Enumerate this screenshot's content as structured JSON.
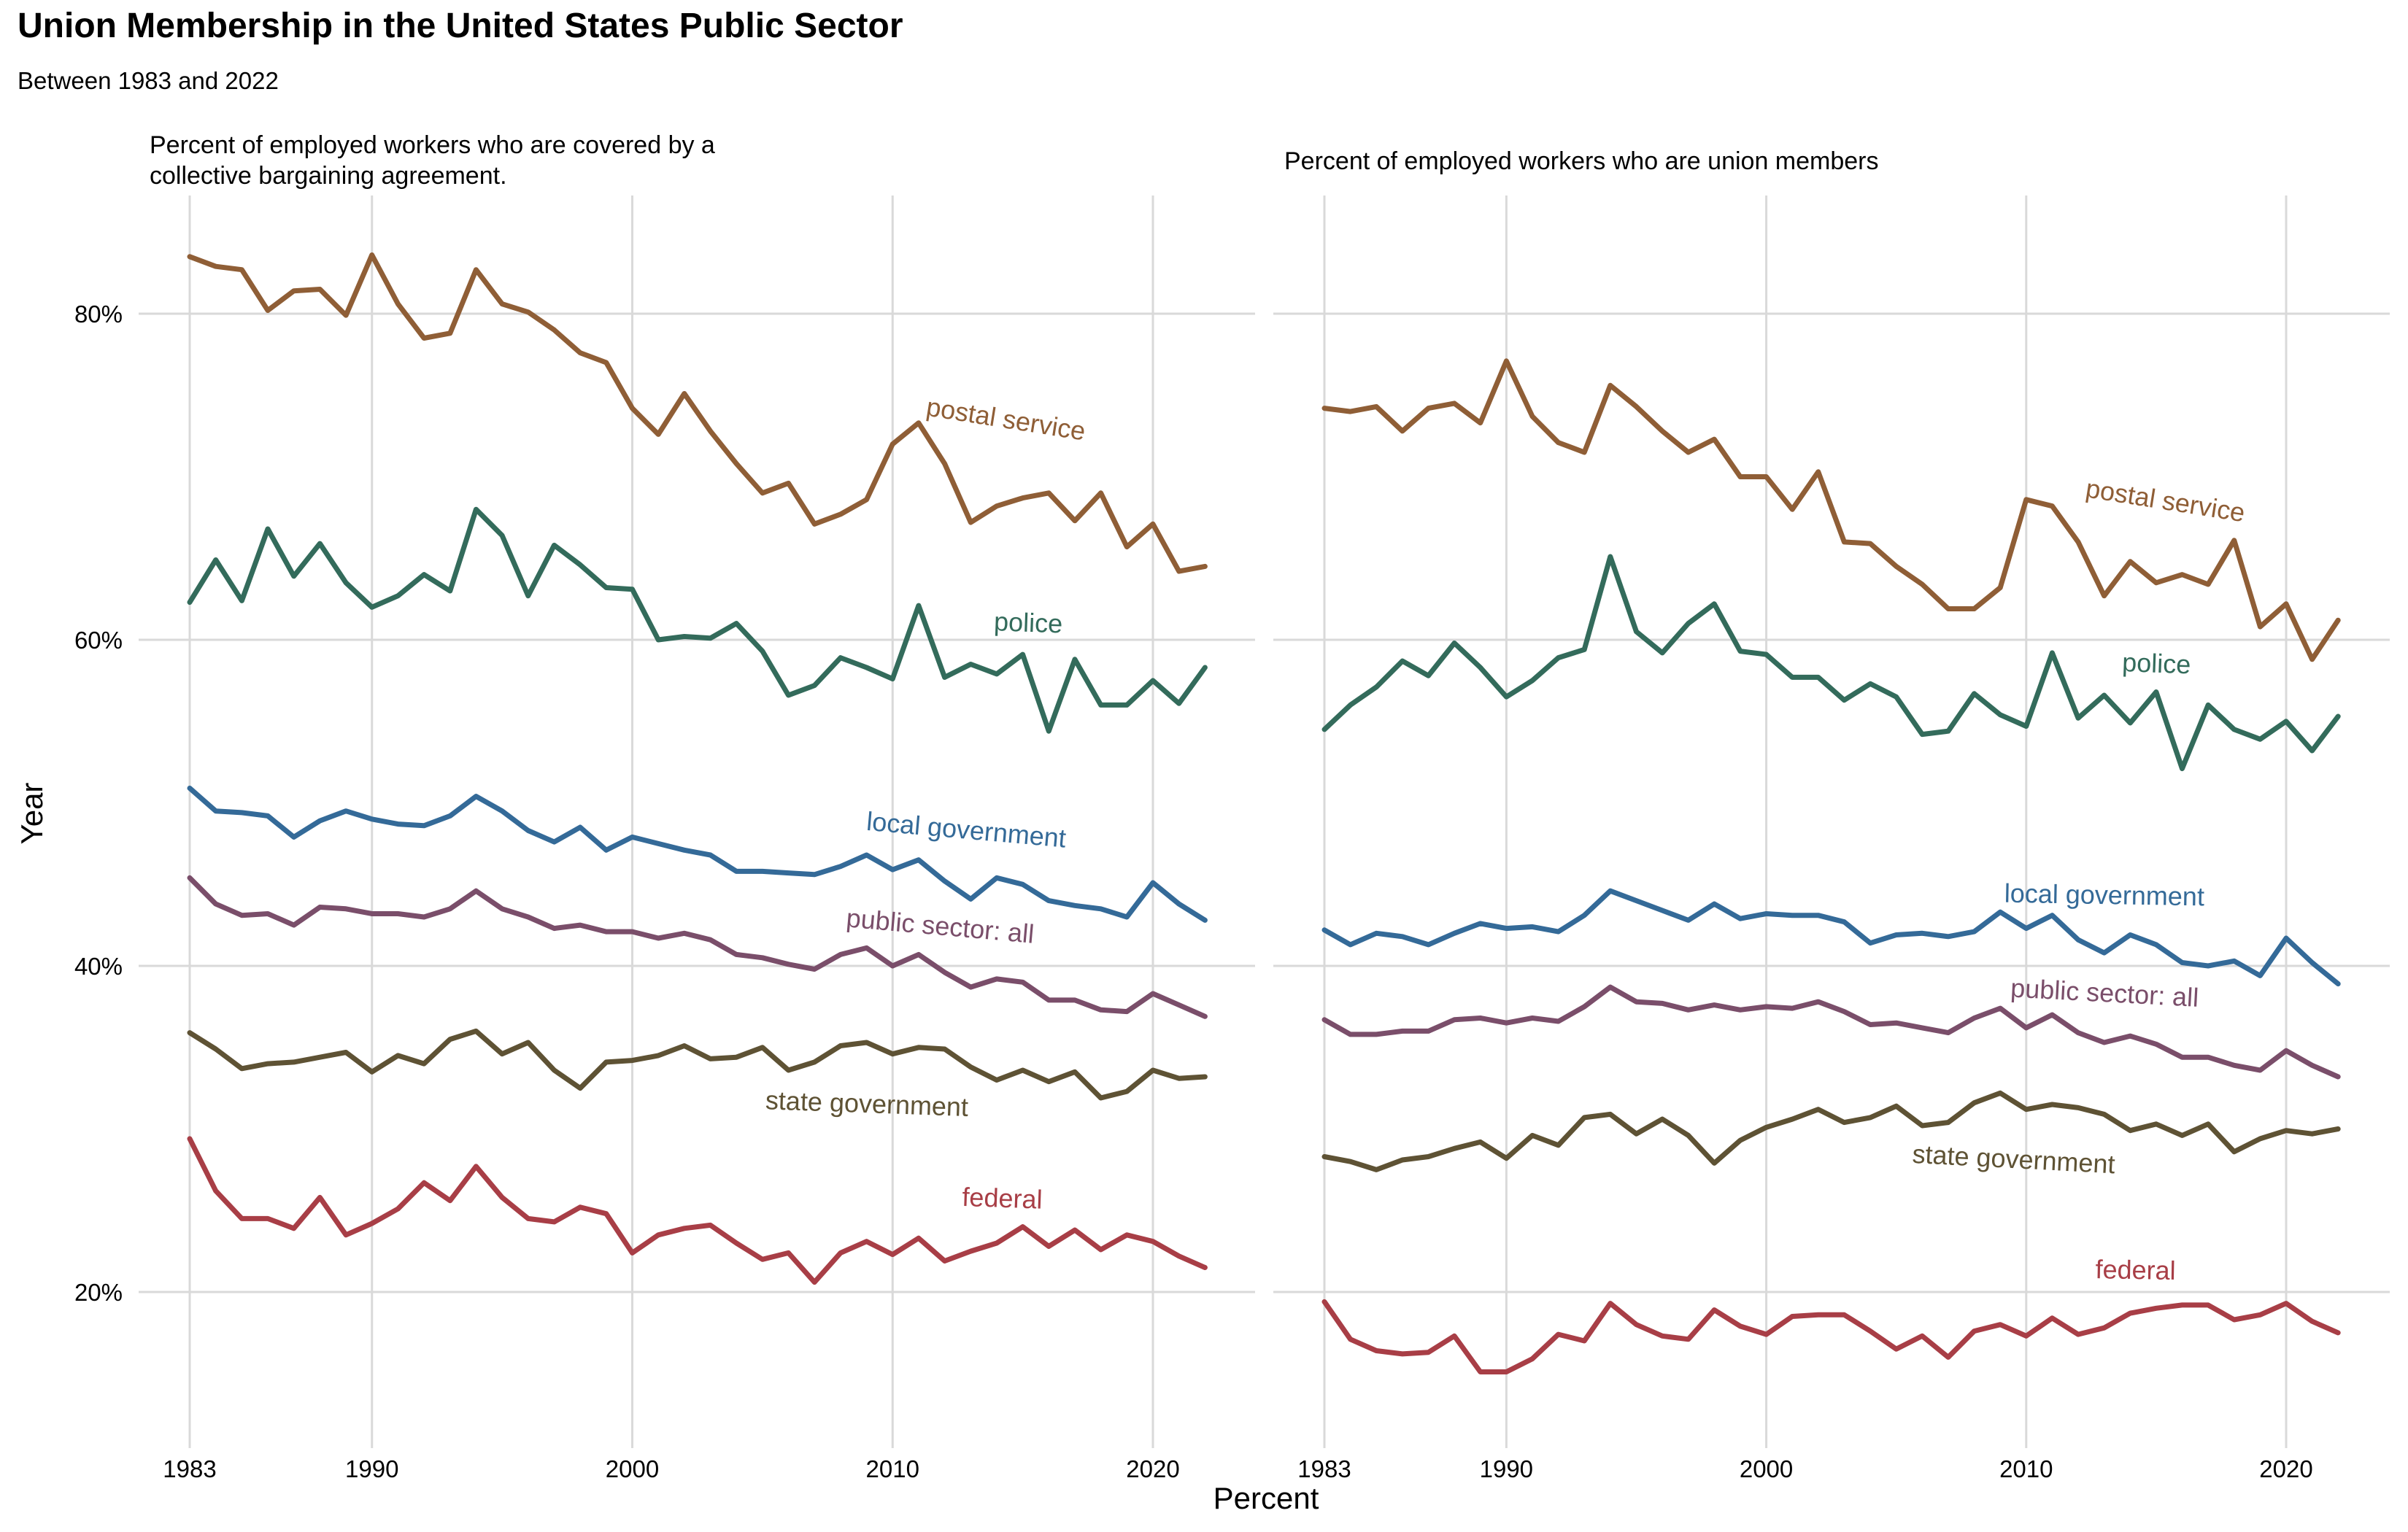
{
  "title": "Union Membership in the United States Public Sector",
  "subtitle": "Between 1983 and 2022",
  "chart_data": {
    "type": "line",
    "xlabel": "Percent",
    "ylabel": "Year",
    "grid": true,
    "legend": "none (direct labels)",
    "x_ticks": [
      1983,
      1990,
      2000,
      2010,
      2020
    ],
    "y_ticks": [
      "20%",
      "40%",
      "60%",
      "80%"
    ],
    "y_tick_values": [
      20,
      40,
      60,
      80
    ],
    "xlim": [
      1981.5,
      2023.5
    ],
    "ylim": [
      12,
      86
    ],
    "years": [
      1983,
      1984,
      1985,
      1986,
      1987,
      1988,
      1989,
      1990,
      1991,
      1992,
      1993,
      1994,
      1995,
      1996,
      1997,
      1998,
      1999,
      2000,
      2001,
      2002,
      2003,
      2004,
      2005,
      2006,
      2007,
      2008,
      2009,
      2010,
      2011,
      2012,
      2013,
      2014,
      2015,
      2016,
      2017,
      2018,
      2019,
      2020,
      2021,
      2022
    ],
    "panels": [
      {
        "title_lines": [
          "Percent of employed workers who are covered by a",
          "collective bargaining agreement."
        ],
        "series": [
          {
            "name": "postal service",
            "color": "#8F5E36",
            "label_year": 2014.3,
            "label_value": 73.0,
            "label_angle": 9,
            "values": [
              83.5,
              82.9,
              82.7,
              80.2,
              81.4,
              81.5,
              79.9,
              83.6,
              80.6,
              78.5,
              78.8,
              82.7,
              80.6,
              80.1,
              79.0,
              77.6,
              77.0,
              74.2,
              72.6,
              75.1,
              72.8,
              70.8,
              69.0,
              69.6,
              67.1,
              67.7,
              68.6,
              72.0,
              73.3,
              70.8,
              67.2,
              68.2,
              68.7,
              69.0,
              67.3,
              69.0,
              65.7,
              67.1,
              64.2,
              64.5
            ]
          },
          {
            "name": "police",
            "color": "#336B5B",
            "label_year": 2015.2,
            "label_value": 60.5,
            "label_angle": 2,
            "values": [
              62.3,
              64.9,
              62.4,
              66.8,
              63.9,
              65.9,
              63.5,
              62.0,
              62.7,
              64.0,
              63.0,
              68.0,
              66.4,
              62.7,
              65.8,
              64.6,
              63.2,
              63.1,
              60.0,
              60.2,
              60.1,
              61.0,
              59.3,
              56.6,
              57.2,
              58.9,
              58.3,
              57.6,
              62.1,
              57.7,
              58.5,
              57.9,
              59.1,
              54.4,
              58.8,
              56.0,
              56.0,
              57.5,
              56.1,
              58.3
            ]
          },
          {
            "name": "local government",
            "color": "#346A98",
            "label_year": 2012.8,
            "label_value": 47.8,
            "label_angle": 5,
            "values": [
              50.9,
              49.5,
              49.4,
              49.2,
              47.9,
              48.9,
              49.5,
              49.0,
              48.7,
              48.6,
              49.2,
              50.4,
              49.5,
              48.3,
              47.6,
              48.5,
              47.1,
              47.9,
              47.5,
              47.1,
              46.8,
              45.8,
              45.8,
              45.7,
              45.6,
              46.1,
              46.8,
              45.9,
              46.5,
              45.2,
              44.1,
              45.4,
              45.0,
              44.0,
              43.7,
              43.5,
              43.0,
              45.1,
              43.8,
              42.8
            ]
          },
          {
            "name": "public sector: all",
            "color": "#7A4E6A",
            "label_year": 2011.8,
            "label_value": 41.9,
            "label_angle": 5,
            "values": [
              45.4,
              43.8,
              43.1,
              43.2,
              42.5,
              43.6,
              43.5,
              43.2,
              43.2,
              43.0,
              43.5,
              44.6,
              43.5,
              43.0,
              42.3,
              42.5,
              42.1,
              42.1,
              41.7,
              42.0,
              41.6,
              40.7,
              40.5,
              40.1,
              39.8,
              40.7,
              41.1,
              40.0,
              40.7,
              39.6,
              38.7,
              39.2,
              39.0,
              37.9,
              37.9,
              37.3,
              37.2,
              38.3,
              37.6,
              36.9
            ]
          },
          {
            "name": "state government",
            "color": "#5E5234",
            "label_year": 2009.0,
            "label_value": 31.0,
            "label_angle": 2,
            "values": [
              35.9,
              34.9,
              33.7,
              34.0,
              34.1,
              34.4,
              34.7,
              33.5,
              34.5,
              34.0,
              35.5,
              36.0,
              34.6,
              35.3,
              33.6,
              32.5,
              34.1,
              34.2,
              34.5,
              35.1,
              34.3,
              34.4,
              35.0,
              33.6,
              34.1,
              35.1,
              35.3,
              34.6,
              35.0,
              34.9,
              33.8,
              33.0,
              33.6,
              32.9,
              33.5,
              31.9,
              32.3,
              33.6,
              33.1,
              33.2
            ]
          },
          {
            "name": "federal",
            "color": "#A83E46",
            "label_year": 2014.2,
            "label_value": 25.2,
            "label_angle": 2,
            "values": [
              29.4,
              26.2,
              24.5,
              24.5,
              23.9,
              25.8,
              23.5,
              24.2,
              25.1,
              26.7,
              25.6,
              27.7,
              25.8,
              24.5,
              24.3,
              25.2,
              24.8,
              22.4,
              23.5,
              23.9,
              24.1,
              23.0,
              22.0,
              22.4,
              20.6,
              22.4,
              23.1,
              22.3,
              23.3,
              21.9,
              22.5,
              23.0,
              24.0,
              22.8,
              23.8,
              22.6,
              23.5,
              23.1,
              22.2,
              21.5
            ]
          }
        ]
      },
      {
        "title_lines": [
          "Percent of employed workers who are union members"
        ],
        "series": [
          {
            "name": "postal service",
            "color": "#8F5E36",
            "label_year": 2015.3,
            "label_value": 68.0,
            "label_angle": 9,
            "values": [
              74.2,
              74.0,
              74.3,
              72.8,
              74.2,
              74.5,
              73.3,
              77.1,
              73.7,
              72.1,
              71.5,
              75.6,
              74.3,
              72.8,
              71.5,
              72.3,
              70.0,
              70.0,
              68.0,
              70.3,
              66.0,
              65.9,
              64.5,
              63.4,
              61.9,
              61.9,
              63.2,
              68.6,
              68.2,
              66.0,
              62.7,
              64.8,
              63.5,
              64.0,
              63.4,
              66.1,
              60.8,
              62.2,
              58.8,
              61.2
            ]
          },
          {
            "name": "police",
            "color": "#336B5B",
            "label_year": 2015.0,
            "label_value": 58.0,
            "label_angle": 2,
            "values": [
              54.5,
              56.0,
              57.1,
              58.7,
              57.8,
              59.8,
              58.3,
              56.5,
              57.5,
              58.9,
              59.4,
              65.1,
              60.5,
              59.2,
              61.0,
              62.2,
              59.3,
              59.1,
              57.7,
              57.7,
              56.3,
              57.3,
              56.5,
              54.2,
              54.4,
              56.7,
              55.4,
              54.7,
              59.2,
              55.2,
              56.6,
              54.9,
              56.8,
              52.1,
              56.0,
              54.5,
              53.9,
              55.0,
              53.2,
              55.3
            ]
          },
          {
            "name": "local government",
            "color": "#346A98",
            "label_year": 2013.0,
            "label_value": 43.8,
            "label_angle": 1,
            "values": [
              42.2,
              41.3,
              42.0,
              41.8,
              41.3,
              42.0,
              42.6,
              42.3,
              42.4,
              42.1,
              43.1,
              44.6,
              44.0,
              43.4,
              42.8,
              43.8,
              42.9,
              43.2,
              43.1,
              43.1,
              42.7,
              41.4,
              41.9,
              42.0,
              41.8,
              42.1,
              43.3,
              42.3,
              43.1,
              41.6,
              40.8,
              41.9,
              41.3,
              40.2,
              40.0,
              40.3,
              39.4,
              41.7,
              40.2,
              38.9
            ]
          },
          {
            "name": "public sector: all",
            "color": "#7A4E6A",
            "label_year": 2013.0,
            "label_value": 37.8,
            "label_angle": 3,
            "values": [
              36.7,
              35.8,
              35.8,
              36.0,
              36.0,
              36.7,
              36.8,
              36.5,
              36.8,
              36.6,
              37.5,
              38.7,
              37.8,
              37.7,
              37.3,
              37.6,
              37.3,
              37.5,
              37.4,
              37.8,
              37.2,
              36.4,
              36.5,
              36.2,
              35.9,
              36.8,
              37.4,
              36.2,
              37.0,
              35.9,
              35.3,
              35.7,
              35.2,
              34.4,
              34.4,
              33.9,
              33.6,
              34.8,
              33.9,
              33.2
            ]
          },
          {
            "name": "state government",
            "color": "#5E5234",
            "label_year": 2009.5,
            "label_value": 27.6,
            "label_angle": 3,
            "values": [
              28.3,
              28.0,
              27.5,
              28.1,
              28.3,
              28.8,
              29.2,
              28.2,
              29.6,
              29.0,
              30.7,
              30.9,
              29.7,
              30.6,
              29.6,
              27.9,
              29.3,
              30.1,
              30.6,
              31.2,
              30.4,
              30.7,
              31.4,
              30.2,
              30.4,
              31.6,
              32.2,
              31.2,
              31.5,
              31.3,
              30.9,
              29.9,
              30.3,
              29.6,
              30.3,
              28.6,
              29.4,
              29.9,
              29.7,
              30.0
            ]
          },
          {
            "name": "federal",
            "color": "#A83E46",
            "label_year": 2014.2,
            "label_value": 20.8,
            "label_angle": 1,
            "values": [
              19.4,
              17.1,
              16.4,
              16.2,
              16.3,
              17.3,
              15.1,
              15.1,
              15.9,
              17.4,
              17.0,
              19.3,
              18.0,
              17.3,
              17.1,
              18.9,
              17.9,
              17.4,
              18.5,
              18.6,
              18.6,
              17.6,
              16.5,
              17.3,
              16.0,
              17.6,
              18.0,
              17.3,
              18.4,
              17.4,
              17.8,
              18.7,
              19.0,
              19.2,
              19.2,
              18.3,
              18.6,
              19.3,
              18.2,
              17.5
            ]
          }
        ]
      }
    ]
  }
}
